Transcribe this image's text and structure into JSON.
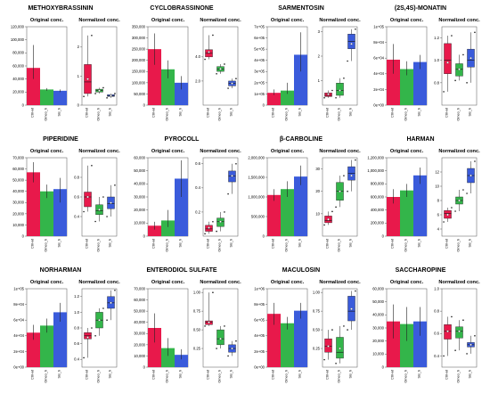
{
  "colors": {
    "ctrl": "#e8194b",
    "omeo": "#33b54a",
    "sis": "#3a5bdb",
    "point": "#1a1a1a",
    "whisker": "#222222"
  },
  "chart_data": [
    {
      "title": "METHOXYBRASSININ",
      "original": {
        "type": "bar",
        "title": "Original conc.",
        "categories": [
          "Ctrl-wt",
          "Omeo_h",
          "Sis_h"
        ],
        "ylim": [
          0,
          120000
        ],
        "ticks": [
          "0",
          "20,000",
          "40,000",
          "60,000",
          "80,000",
          "100,000",
          "120,000"
        ],
        "values": [
          57000,
          24000,
          22000
        ],
        "errors": [
          [
            40000,
            92000
          ],
          [
            22000,
            26000
          ],
          [
            20000,
            24000
          ]
        ]
      },
      "normalized": {
        "type": "box",
        "title": "Normalized conc.",
        "categories": [
          "Ctrl-wt",
          "Omeo_h",
          "Sis_h"
        ],
        "ylim": [
          0,
          2.7
        ],
        "ticks": [
          "0",
          "1",
          "2"
        ],
        "boxes": [
          {
            "min": 0.3,
            "q1": 0.4,
            "median": 0.8,
            "q3": 1.4,
            "max": 2.4,
            "mean": 0.9
          },
          {
            "min": 0.4,
            "q1": 0.45,
            "median": 0.5,
            "q3": 0.55,
            "max": 0.6,
            "mean": 0.5
          },
          {
            "min": 0.25,
            "q1": 0.3,
            "median": 0.32,
            "q3": 0.36,
            "max": 0.4,
            "mean": 0.33
          }
        ]
      }
    },
    {
      "title": "CYCLOBRASSINONE",
      "original": {
        "type": "bar",
        "title": "Original conc.",
        "categories": [
          "Ctrl-wt",
          "Omeo_h",
          "Sis_h"
        ],
        "ylim": [
          0,
          350000
        ],
        "ticks": [
          "0",
          "50,000",
          "100,000",
          "150,000",
          "200,000",
          "250,000",
          "300,000",
          "350,000"
        ],
        "values": [
          250000,
          160000,
          100000
        ],
        "errors": [
          [
            180000,
            320000
          ],
          [
            120000,
            200000
          ],
          [
            70000,
            130000
          ]
        ]
      },
      "normalized": {
        "type": "box",
        "title": "Normalized conc.",
        "categories": [
          "Ctrl-wt",
          "Omeo_h",
          "Sis_h"
        ],
        "ylim": [
          0,
          6.5
        ],
        "ticks": [
          "2.0",
          "4.0"
        ],
        "boxes": [
          {
            "min": 3.8,
            "q1": 4.0,
            "median": 4.3,
            "q3": 4.6,
            "max": 5.8,
            "mean": 4.4
          },
          {
            "min": 2.6,
            "q1": 2.8,
            "median": 3.0,
            "q3": 3.2,
            "max": 3.4,
            "mean": 3.0
          },
          {
            "min": 1.4,
            "q1": 1.6,
            "median": 1.8,
            "q3": 2.0,
            "max": 2.2,
            "mean": 1.8
          }
        ]
      }
    },
    {
      "title": "SARMENTOSIN",
      "original": {
        "type": "bar",
        "title": "Original conc.",
        "categories": [
          "Ctrl-wt",
          "Omeo_h",
          "Sis_h"
        ],
        "ylim": [
          0,
          700000
        ],
        "ticks": [
          "0",
          "1e+05",
          "2e+05",
          "3e+05",
          "4e+05",
          "5e+05",
          "6e+05",
          "7e+05"
        ],
        "values": [
          110000,
          130000,
          450000
        ],
        "errors": [
          [
            90000,
            140000
          ],
          [
            100000,
            200000
          ],
          [
            300000,
            650000
          ]
        ]
      },
      "normalized": {
        "type": "box",
        "title": "Normalized conc.",
        "categories": [
          "Ctrl-wt",
          "Omeo_h",
          "Sis_h"
        ],
        "ylim": [
          0,
          3.2
        ],
        "ticks": [
          "1",
          "2",
          "3"
        ],
        "boxes": [
          {
            "min": 0.3,
            "q1": 0.35,
            "median": 0.4,
            "q3": 0.5,
            "max": 0.6,
            "mean": 0.45
          },
          {
            "min": 0.3,
            "q1": 0.4,
            "median": 0.6,
            "q3": 0.9,
            "max": 1.1,
            "mean": 0.6
          },
          {
            "min": 1.8,
            "q1": 2.3,
            "median": 2.6,
            "q3": 2.9,
            "max": 3.1,
            "mean": 2.5
          }
        ]
      }
    },
    {
      "title": "(2S,4S)-MONATIN",
      "original": {
        "type": "bar",
        "title": "Original conc.",
        "categories": [
          "Ctrl-wt",
          "Omeo_h",
          "Sis_h"
        ],
        "ylim": [
          0,
          100000
        ],
        "ticks": [
          "0e+00",
          "2e+04",
          "4e+04",
          "6e+04",
          "8e+04",
          "1e+05"
        ],
        "values": [
          58000,
          46000,
          55000
        ],
        "errors": [
          [
            40000,
            78000
          ],
          [
            38000,
            56000
          ],
          [
            46000,
            64000
          ]
        ]
      },
      "normalized": {
        "type": "box",
        "title": "Normalized conc.",
        "categories": [
          "Ctrl-wt",
          "Omeo_h",
          "Sis_h"
        ],
        "ylim": [
          0.6,
          1.3
        ],
        "ticks": [
          "0.8",
          "1.0",
          "1.2"
        ],
        "boxes": [
          {
            "min": 0.72,
            "q1": 0.88,
            "median": 1.0,
            "q3": 1.15,
            "max": 1.22,
            "mean": 0.98
          },
          {
            "min": 0.82,
            "q1": 0.86,
            "median": 0.92,
            "q3": 0.97,
            "max": 1.05,
            "mean": 0.92
          },
          {
            "min": 0.8,
            "q1": 0.94,
            "median": 1.0,
            "q3": 1.1,
            "max": 1.25,
            "mean": 1.02
          }
        ]
      }
    },
    {
      "title": "PIPERIDINE",
      "original": {
        "type": "bar",
        "title": "Original conc.",
        "categories": [
          "Ctrl-wt",
          "Omeo_h",
          "Sis_h"
        ],
        "ylim": [
          0,
          70000
        ],
        "ticks": [
          "0",
          "10,000",
          "20,000",
          "30,000",
          "40,000",
          "50,000",
          "60,000",
          "70,000"
        ],
        "values": [
          57000,
          40000,
          42000
        ],
        "errors": [
          [
            48000,
            66000
          ],
          [
            34000,
            46000
          ],
          [
            30000,
            52000
          ]
        ]
      },
      "normalized": {
        "type": "box",
        "title": "Normalized conc.",
        "categories": [
          "Ctrl-wt",
          "Omeo_h",
          "Sis_h"
        ],
        "ylim": [
          0.2,
          1.0
        ],
        "ticks": [
          "0.4",
          "0.6",
          "0.8"
        ],
        "boxes": [
          {
            "min": 0.45,
            "q1": 0.5,
            "median": 0.6,
            "q3": 0.65,
            "max": 0.92,
            "mean": 0.6
          },
          {
            "min": 0.35,
            "q1": 0.42,
            "median": 0.46,
            "q3": 0.52,
            "max": 0.6,
            "mean": 0.47
          },
          {
            "min": 0.4,
            "q1": 0.48,
            "median": 0.53,
            "q3": 0.6,
            "max": 0.72,
            "mean": 0.54
          }
        ]
      }
    },
    {
      "title": "PYROCOLL",
      "original": {
        "type": "bar",
        "title": "Original conc.",
        "categories": [
          "Ctrl-wt",
          "Omeo_h",
          "Sis_h"
        ],
        "ylim": [
          0,
          60000
        ],
        "ticks": [
          "0",
          "10,000",
          "20,000",
          "30,000",
          "40,000",
          "50,000",
          "60,000"
        ],
        "values": [
          8000,
          12000,
          44000
        ],
        "errors": [
          [
            5000,
            11000
          ],
          [
            7000,
            20000
          ],
          [
            30000,
            58000
          ]
        ]
      },
      "normalized": {
        "type": "box",
        "title": "Normalized conc.",
        "categories": [
          "Ctrl-wt",
          "Omeo_h",
          "Sis_h"
        ],
        "ylim": [
          0,
          0.65
        ],
        "ticks": [
          "0.2",
          "0.4",
          "0.6"
        ],
        "boxes": [
          {
            "min": 0.02,
            "q1": 0.04,
            "median": 0.06,
            "q3": 0.09,
            "max": 0.12,
            "mean": 0.07
          },
          {
            "min": 0.04,
            "q1": 0.08,
            "median": 0.12,
            "q3": 0.15,
            "max": 0.2,
            "mean": 0.12
          },
          {
            "min": 0.35,
            "q1": 0.45,
            "median": 0.5,
            "q3": 0.54,
            "max": 0.6,
            "mean": 0.5
          }
        ]
      }
    },
    {
      "title": "β-CARBOLINE",
      "original": {
        "type": "bar",
        "title": "Original conc.",
        "categories": [
          "Ctrl-wt",
          "Omeo_h",
          "Sis_h"
        ],
        "ylim": [
          0,
          2000000
        ],
        "ticks": [
          "0",
          "500,000",
          "1,000,000",
          "1,500,000",
          "2,000,000"
        ],
        "values": [
          1050000,
          1200000,
          1520000
        ],
        "errors": [
          [
            900000,
            1200000
          ],
          [
            1000000,
            1400000
          ],
          [
            1300000,
            1800000
          ]
        ]
      },
      "normalized": {
        "type": "box",
        "title": "Normalized conc.",
        "categories": [
          "Ctrl-wt",
          "Omeo_h",
          "Sis_h"
        ],
        "ylim": [
          0,
          35
        ],
        "ticks": [
          "10",
          "20",
          "30"
        ],
        "boxes": [
          {
            "min": 5,
            "q1": 6,
            "median": 7,
            "q3": 9,
            "max": 11,
            "mean": 7.5
          },
          {
            "min": 13,
            "q1": 16,
            "median": 20,
            "q3": 24,
            "max": 27,
            "mean": 20
          },
          {
            "min": 20,
            "q1": 25,
            "median": 28,
            "q3": 31,
            "max": 34,
            "mean": 27
          }
        ]
      }
    },
    {
      "title": "HARMAN",
      "original": {
        "type": "bar",
        "title": "Original conc.",
        "categories": [
          "Ctrl-wt",
          "Omeo_h",
          "Sis_h"
        ],
        "ylim": [
          0,
          1200000
        ],
        "ticks": [
          "0",
          "200,000",
          "400,000",
          "600,000",
          "800,000",
          "1,000,000",
          "1,200,000"
        ],
        "values": [
          600000,
          700000,
          930000
        ],
        "errors": [
          [
            500000,
            720000
          ],
          [
            600000,
            800000
          ],
          [
            800000,
            1050000
          ]
        ]
      },
      "normalized": {
        "type": "box",
        "title": "Normalized conc.",
        "categories": [
          "Ctrl-wt",
          "Omeo_h",
          "Sis_h"
        ],
        "ylim": [
          3,
          14
        ],
        "ticks": [
          "4",
          "6",
          "8",
          "10",
          "12"
        ],
        "boxes": [
          {
            "min": 5,
            "q1": 5.5,
            "median": 6.2,
            "q3": 6.6,
            "max": 7,
            "mean": 6
          },
          {
            "min": 6.5,
            "q1": 7.5,
            "median": 8,
            "q3": 8.5,
            "max": 9.5,
            "mean": 8
          },
          {
            "min": 9,
            "q1": 10.5,
            "median": 11.5,
            "q3": 12.5,
            "max": 13.5,
            "mean": 11.5
          }
        ]
      }
    },
    {
      "title": "NORHARMAN",
      "original": {
        "type": "bar",
        "title": "Original conc.",
        "categories": [
          "Ctrl-wt",
          "Omeo_h",
          "Sis_h"
        ],
        "ylim": [
          0,
          100000
        ],
        "ticks": [
          "0e+00",
          "2e+04",
          "4e+04",
          "6e+04",
          "8e+04",
          "1e+05"
        ],
        "values": [
          44000,
          53000,
          70000
        ],
        "errors": [
          [
            35000,
            54000
          ],
          [
            44000,
            62000
          ],
          [
            58000,
            82000
          ]
        ]
      },
      "normalized": {
        "type": "box",
        "title": "Normalized conc.",
        "categories": [
          "Ctrl-wt",
          "Omeo_h",
          "Sis_h"
        ],
        "ylim": [
          0.3,
          1.3
        ],
        "ticks": [
          "0.4",
          "0.6",
          "0.8",
          "1.0",
          "1.2"
        ],
        "boxes": [
          {
            "min": 0.42,
            "q1": 0.66,
            "median": 0.7,
            "q3": 0.74,
            "max": 0.8,
            "mean": 0.68
          },
          {
            "min": 0.7,
            "q1": 0.8,
            "median": 0.9,
            "q3": 1.0,
            "max": 1.05,
            "mean": 0.9
          },
          {
            "min": 0.9,
            "q1": 1.05,
            "median": 1.12,
            "q3": 1.2,
            "max": 1.28,
            "mean": 1.12
          }
        ]
      }
    },
    {
      "title": "ENTERODIOL SULFATE",
      "original": {
        "type": "bar",
        "title": "Original conc.",
        "categories": [
          "Ctrl-wt",
          "Omeo_h",
          "Sis_h"
        ],
        "ylim": [
          0,
          70000
        ],
        "ticks": [
          "0",
          "10,000",
          "20,000",
          "30,000",
          "40,000",
          "50,000",
          "60,000",
          "70,000"
        ],
        "values": [
          35000,
          17000,
          11000
        ],
        "errors": [
          [
            22000,
            48000
          ],
          [
            10000,
            26000
          ],
          [
            7000,
            16000
          ]
        ]
      },
      "normalized": {
        "type": "box",
        "title": "Normalized conc.",
        "categories": [
          "Ctrl-wt",
          "Omeo_h",
          "Sis_h"
        ],
        "ylim": [
          0,
          1.05
        ],
        "ticks": [
          "0.25",
          "0.50",
          "0.75",
          "1.00"
        ],
        "boxes": [
          {
            "min": 0.55,
            "q1": 0.57,
            "median": 0.6,
            "q3": 0.62,
            "max": 1.0,
            "mean": 0.6
          },
          {
            "min": 0.25,
            "q1": 0.3,
            "median": 0.38,
            "q3": 0.5,
            "max": 0.55,
            "mean": 0.38
          },
          {
            "min": 0.15,
            "q1": 0.2,
            "median": 0.25,
            "q3": 0.3,
            "max": 0.35,
            "mean": 0.25
          }
        ]
      }
    },
    {
      "title": "MACULOSIN",
      "original": {
        "type": "bar",
        "title": "Original conc.",
        "categories": [
          "Ctrl-wt",
          "Omeo_h",
          "Sis_h"
        ],
        "ylim": [
          0,
          1000000
        ],
        "ticks": [
          "0e+00",
          "2e+05",
          "4e+05",
          "6e+05",
          "8e+05",
          "1e+06"
        ],
        "values": [
          680000,
          560000,
          720000
        ],
        "errors": [
          [
            540000,
            820000
          ],
          [
            480000,
            640000
          ],
          [
            620000,
            820000
          ]
        ]
      },
      "normalized": {
        "type": "box",
        "title": "Normalized conc.",
        "categories": [
          "Ctrl-wt",
          "Omeo_h",
          "Sis_h"
        ],
        "ylim": [
          0,
          1.05
        ],
        "ticks": [
          "0.25",
          "0.50",
          "0.75",
          "1.00"
        ],
        "boxes": [
          {
            "min": 0.1,
            "q1": 0.2,
            "median": 0.28,
            "q3": 0.38,
            "max": 0.5,
            "mean": 0.28
          },
          {
            "min": 0.05,
            "q1": 0.12,
            "median": 0.2,
            "q3": 0.4,
            "max": 0.55,
            "mean": 0.25
          },
          {
            "min": 0.5,
            "q1": 0.62,
            "median": 0.75,
            "q3": 0.95,
            "max": 1.02,
            "mean": 0.78
          }
        ]
      }
    },
    {
      "title": "SACCHAROPINE",
      "original": {
        "type": "bar",
        "title": "Original conc.",
        "categories": [
          "Ctrl-wt",
          "Omeo_h",
          "Sis_h"
        ],
        "ylim": [
          0,
          60000
        ],
        "ticks": [
          "0",
          "10,000",
          "20,000",
          "30,000",
          "40,000",
          "50,000",
          "60,000"
        ],
        "values": [
          35000,
          33000,
          35000
        ],
        "errors": [
          [
            22000,
            48000
          ],
          [
            20000,
            46000
          ],
          [
            24000,
            46000
          ]
        ]
      },
      "normalized": {
        "type": "box",
        "title": "Normalized conc.",
        "categories": [
          "Ctrl-wt",
          "Omeo_h",
          "Sis_h"
        ],
        "ylim": [
          0.3,
          1.0
        ],
        "ticks": [
          "0.4",
          "0.6",
          "0.8",
          "1.0"
        ],
        "boxes": [
          {
            "min": 0.4,
            "q1": 0.55,
            "median": 0.62,
            "q3": 0.68,
            "max": 0.75,
            "mean": 0.62
          },
          {
            "min": 0.45,
            "q1": 0.56,
            "median": 0.62,
            "q3": 0.66,
            "max": 0.72,
            "mean": 0.62
          },
          {
            "min": 0.42,
            "q1": 0.48,
            "median": 0.5,
            "q3": 0.52,
            "max": 0.58,
            "mean": 0.5
          }
        ]
      }
    }
  ]
}
